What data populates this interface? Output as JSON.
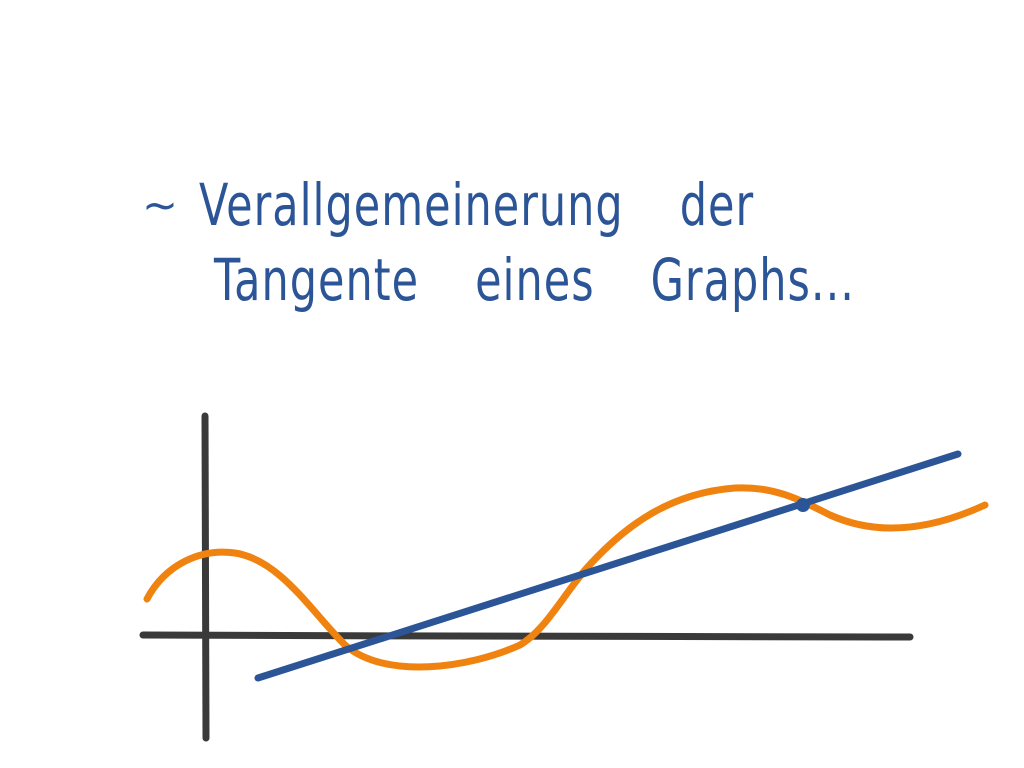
{
  "note": {
    "line1": {
      "tilde": "~",
      "word1": "Verallgemeinerung",
      "word2": "der"
    },
    "line2": {
      "word1": "Tangente",
      "word2": "eines",
      "word3": "Graphs..."
    }
  },
  "colors": {
    "ink_blue": "#2b5596",
    "curve_orange": "#f08310",
    "axis_dark": "#3a3a3a",
    "background": "#ffffff"
  }
}
